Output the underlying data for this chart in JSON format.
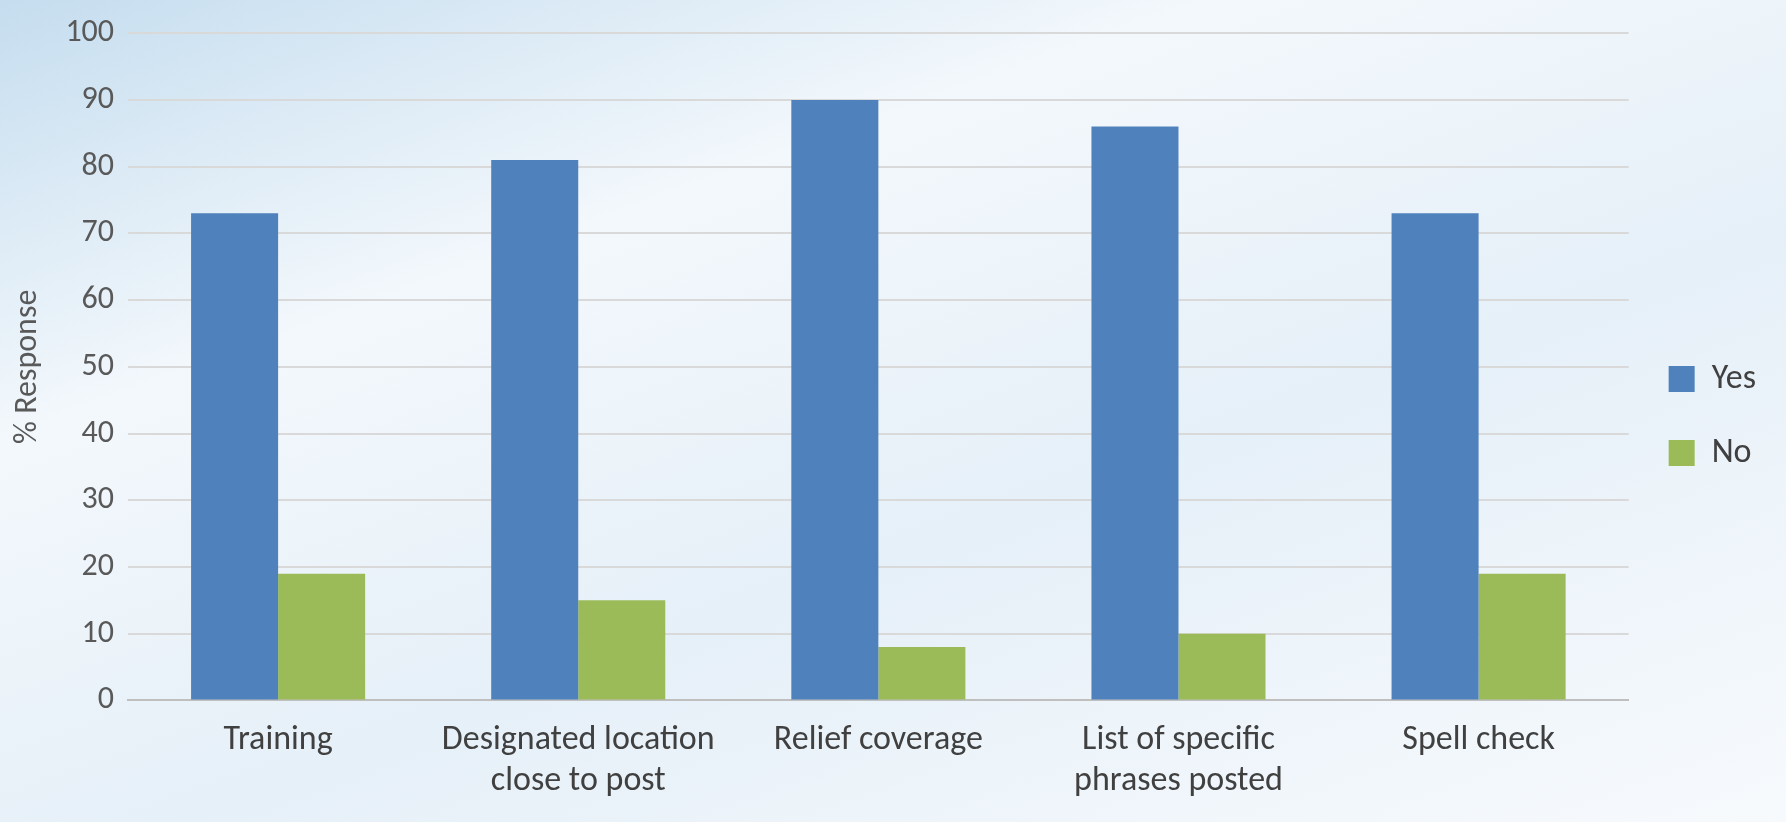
{
  "chart_data": {
    "type": "bar",
    "ylabel": "% Response",
    "categories": [
      "Training",
      "Designated location close to post",
      "Relief coverage",
      "List of specific phrases posted",
      "Spell check"
    ],
    "series": [
      {
        "name": "Yes",
        "color": "#4f81bd",
        "values": [
          73,
          81,
          90,
          86,
          73
        ]
      },
      {
        "name": "No",
        "color": "#9bbb59",
        "values": [
          19,
          15,
          8,
          10,
          19
        ]
      }
    ],
    "ylim": [
      0,
      100
    ],
    "yticks": [
      0,
      10,
      20,
      30,
      40,
      50,
      60,
      70,
      80,
      90,
      100
    ],
    "grid": "y",
    "legend": "right"
  }
}
